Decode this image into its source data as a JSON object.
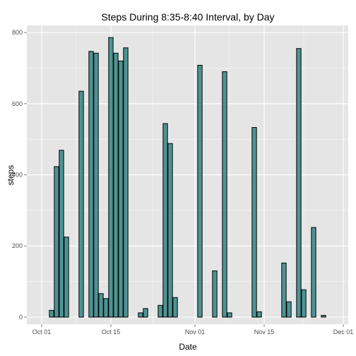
{
  "chart_data": {
    "type": "bar",
    "title": "Steps During 8:35-8:40 Interval, by Day",
    "xlabel": "Date",
    "ylabel": "steps",
    "x_ticks": [
      {
        "date": "2012-10-01",
        "label": "Oct 01"
      },
      {
        "date": "2012-10-15",
        "label": "Oct 15"
      },
      {
        "date": "2012-11-01",
        "label": "Nov 01"
      },
      {
        "date": "2012-11-15",
        "label": "Nov 15"
      },
      {
        "date": "2012-12-01",
        "label": "Dec 01"
      }
    ],
    "y_ticks": [
      0,
      200,
      400,
      600,
      800
    ],
    "xlim": [
      "2012-09-28",
      "2012-12-02"
    ],
    "ylim": [
      -20,
      820
    ],
    "grid": true,
    "bar_fill": "#4f9393",
    "bar_stroke": "#000000",
    "panel_bg": "#e5e5e5",
    "grid_color": "#ffffff",
    "dates": [
      "2012-10-01",
      "2012-10-02",
      "2012-10-03",
      "2012-10-04",
      "2012-10-05",
      "2012-10-06",
      "2012-10-07",
      "2012-10-08",
      "2012-10-09",
      "2012-10-10",
      "2012-10-11",
      "2012-10-12",
      "2012-10-13",
      "2012-10-14",
      "2012-10-15",
      "2012-10-16",
      "2012-10-17",
      "2012-10-18",
      "2012-10-19",
      "2012-10-20",
      "2012-10-21",
      "2012-10-22",
      "2012-10-23",
      "2012-10-24",
      "2012-10-25",
      "2012-10-26",
      "2012-10-27",
      "2012-10-28",
      "2012-10-29",
      "2012-10-30",
      "2012-10-31",
      "2012-11-01",
      "2012-11-02",
      "2012-11-03",
      "2012-11-04",
      "2012-11-05",
      "2012-11-06",
      "2012-11-07",
      "2012-11-08",
      "2012-11-09",
      "2012-11-10",
      "2012-11-11",
      "2012-11-12",
      "2012-11-13",
      "2012-11-14",
      "2012-11-15",
      "2012-11-16",
      "2012-11-17",
      "2012-11-18",
      "2012-11-19",
      "2012-11-20",
      "2012-11-21",
      "2012-11-22",
      "2012-11-23",
      "2012-11-24",
      "2012-11-25",
      "2012-11-26",
      "2012-11-27",
      "2012-11-28",
      "2012-11-29",
      "2012-11-30"
    ],
    "values": [
      0,
      0,
      19,
      423,
      469,
      225,
      0,
      0,
      635,
      0,
      747,
      742,
      66,
      52,
      786,
      742,
      720,
      757,
      0,
      0,
      12,
      24,
      0,
      0,
      33,
      544,
      488,
      55,
      0,
      0,
      0,
      0,
      708,
      0,
      0,
      130,
      0,
      690,
      12,
      0,
      0,
      0,
      0,
      533,
      15,
      0,
      0,
      0,
      0,
      152,
      43,
      0,
      755,
      77,
      0,
      252,
      0,
      5,
      0,
      0,
      0
    ]
  }
}
